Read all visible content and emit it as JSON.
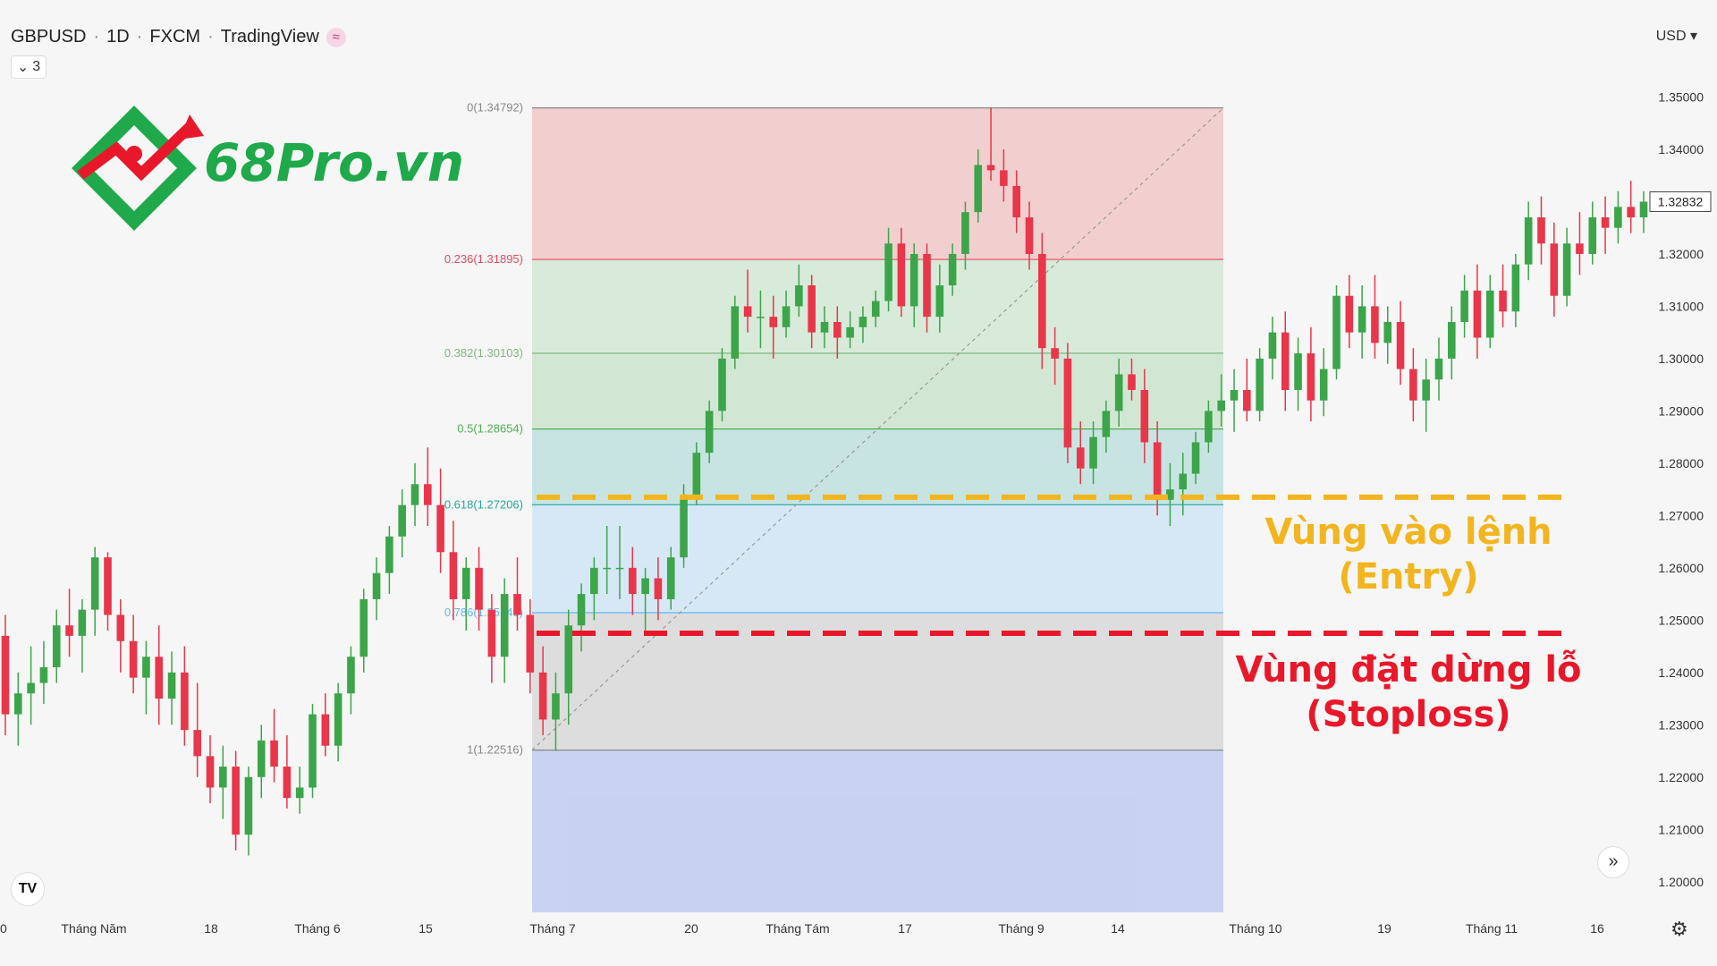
{
  "header": {
    "symbol": "GBPUSD",
    "interval": "1D",
    "broker": "FXCM",
    "source": "TradingView",
    "wave_icon": "wave-icon"
  },
  "collapse": {
    "count": "3"
  },
  "logo": {
    "text": "68Pro.vn"
  },
  "currency": "USD",
  "annotations": {
    "entry_line1": "Vùng vào lệnh",
    "entry_line2": "(Entry)",
    "stop_line1": "Vùng đặt dừng lỗ",
    "stop_line2": "(Stoploss)"
  },
  "chart_data": {
    "type": "candlestick",
    "title": "",
    "ylim": [
      1.195,
      1.36
    ],
    "y_ticks": [
      1.35,
      1.34,
      1.33,
      1.32,
      1.31,
      1.3,
      1.29,
      1.28,
      1.27,
      1.26,
      1.25,
      1.24,
      1.23,
      1.22,
      1.21,
      1.2
    ],
    "x_ticks": [
      "0",
      "Tháng Năm",
      "18",
      "Tháng 6",
      "15",
      "Tháng 7",
      "20",
      "Tháng Tám",
      "17",
      "Tháng 9",
      "14",
      "Tháng 10",
      "19",
      "Tháng 11",
      "16"
    ],
    "current_price": "1.32832",
    "fib_levels": [
      {
        "label": "0(1.34792)",
        "value": 1.34792,
        "color": "#888888"
      },
      {
        "label": "0.236(1.31895)",
        "value": 1.31895,
        "color": "#e34b5c"
      },
      {
        "label": "0.382(1.30103)",
        "value": 1.30103,
        "color": "#7fb77e"
      },
      {
        "label": "0.5(1.28654)",
        "value": 1.28654,
        "color": "#4caf50"
      },
      {
        "label": "0.618(1.27206)",
        "value": 1.27206,
        "color": "#26a69a"
      },
      {
        "label": "0.786(1.25143)",
        "value": 1.25143,
        "color": "#64b5f6"
      },
      {
        "label": "1(1.22516)",
        "value": 1.22516,
        "color": "#888888"
      }
    ],
    "entry_level": 1.2735,
    "stoploss_level": 1.2475,
    "candles": [
      [
        1.247,
        1.251,
        1.228,
        1.232
      ],
      [
        1.232,
        1.24,
        1.226,
        1.236
      ],
      [
        1.236,
        1.245,
        1.23,
        1.238
      ],
      [
        1.238,
        1.246,
        1.234,
        1.241
      ],
      [
        1.241,
        1.252,
        1.238,
        1.249
      ],
      [
        1.249,
        1.256,
        1.243,
        1.247
      ],
      [
        1.247,
        1.254,
        1.24,
        1.252
      ],
      [
        1.252,
        1.264,
        1.247,
        1.262
      ],
      [
        1.262,
        1.263,
        1.248,
        1.251
      ],
      [
        1.251,
        1.254,
        1.24,
        1.246
      ],
      [
        1.246,
        1.251,
        1.236,
        1.239
      ],
      [
        1.239,
        1.246,
        1.232,
        1.243
      ],
      [
        1.243,
        1.249,
        1.23,
        1.235
      ],
      [
        1.235,
        1.244,
        1.23,
        1.24
      ],
      [
        1.24,
        1.245,
        1.226,
        1.229
      ],
      [
        1.229,
        1.238,
        1.22,
        1.224
      ],
      [
        1.224,
        1.228,
        1.215,
        1.218
      ],
      [
        1.218,
        1.226,
        1.212,
        1.222
      ],
      [
        1.222,
        1.225,
        1.206,
        1.209
      ],
      [
        1.209,
        1.222,
        1.205,
        1.22
      ],
      [
        1.22,
        1.23,
        1.216,
        1.227
      ],
      [
        1.227,
        1.233,
        1.219,
        1.222
      ],
      [
        1.222,
        1.228,
        1.214,
        1.216
      ],
      [
        1.216,
        1.222,
        1.213,
        1.218
      ],
      [
        1.218,
        1.234,
        1.216,
        1.232
      ],
      [
        1.232,
        1.236,
        1.224,
        1.226
      ],
      [
        1.226,
        1.238,
        1.223,
        1.236
      ],
      [
        1.236,
        1.245,
        1.232,
        1.243
      ],
      [
        1.243,
        1.256,
        1.24,
        1.254
      ],
      [
        1.254,
        1.262,
        1.25,
        1.259
      ],
      [
        1.259,
        1.268,
        1.255,
        1.266
      ],
      [
        1.266,
        1.275,
        1.262,
        1.272
      ],
      [
        1.272,
        1.28,
        1.268,
        1.276
      ],
      [
        1.276,
        1.283,
        1.268,
        1.272
      ],
      [
        1.272,
        1.279,
        1.259,
        1.263
      ],
      [
        1.263,
        1.269,
        1.25,
        1.254
      ],
      [
        1.254,
        1.262,
        1.248,
        1.26
      ],
      [
        1.26,
        1.264,
        1.248,
        1.252
      ],
      [
        1.252,
        1.255,
        1.238,
        1.243
      ],
      [
        1.243,
        1.258,
        1.238,
        1.255
      ],
      [
        1.255,
        1.262,
        1.248,
        1.251
      ],
      [
        1.251,
        1.254,
        1.236,
        1.24
      ],
      [
        1.24,
        1.245,
        1.228,
        1.231
      ],
      [
        1.231,
        1.24,
        1.225,
        1.236
      ],
      [
        1.236,
        1.252,
        1.23,
        1.249
      ],
      [
        1.249,
        1.257,
        1.244,
        1.255
      ],
      [
        1.255,
        1.262,
        1.25,
        1.26
      ],
      [
        1.26,
        1.268,
        1.255,
        1.26
      ],
      [
        1.26,
        1.268,
        1.254,
        1.26
      ],
      [
        1.26,
        1.264,
        1.251,
        1.255
      ],
      [
        1.255,
        1.26,
        1.248,
        1.258
      ],
      [
        1.258,
        1.262,
        1.25,
        1.254
      ],
      [
        1.254,
        1.264,
        1.252,
        1.262
      ],
      [
        1.262,
        1.276,
        1.26,
        1.274
      ],
      [
        1.274,
        1.284,
        1.272,
        1.282
      ],
      [
        1.282,
        1.292,
        1.28,
        1.29
      ],
      [
        1.29,
        1.302,
        1.288,
        1.3
      ],
      [
        1.3,
        1.312,
        1.298,
        1.31
      ],
      [
        1.31,
        1.317,
        1.305,
        1.308
      ],
      [
        1.308,
        1.313,
        1.302,
        1.308
      ],
      [
        1.308,
        1.312,
        1.3,
        1.306
      ],
      [
        1.306,
        1.313,
        1.304,
        1.31
      ],
      [
        1.31,
        1.318,
        1.308,
        1.314
      ],
      [
        1.314,
        1.316,
        1.302,
        1.305
      ],
      [
        1.305,
        1.31,
        1.302,
        1.307
      ],
      [
        1.307,
        1.31,
        1.3,
        1.304
      ],
      [
        1.304,
        1.309,
        1.302,
        1.306
      ],
      [
        1.306,
        1.31,
        1.303,
        1.308
      ],
      [
        1.308,
        1.313,
        1.306,
        1.311
      ],
      [
        1.311,
        1.325,
        1.309,
        1.322
      ],
      [
        1.322,
        1.325,
        1.308,
        1.31
      ],
      [
        1.31,
        1.322,
        1.306,
        1.32
      ],
      [
        1.32,
        1.322,
        1.305,
        1.308
      ],
      [
        1.308,
        1.318,
        1.305,
        1.314
      ],
      [
        1.314,
        1.322,
        1.312,
        1.32
      ],
      [
        1.32,
        1.33,
        1.317,
        1.328
      ],
      [
        1.328,
        1.34,
        1.326,
        1.337
      ],
      [
        1.337,
        1.348,
        1.334,
        1.336
      ],
      [
        1.336,
        1.34,
        1.33,
        1.333
      ],
      [
        1.333,
        1.336,
        1.324,
        1.327
      ],
      [
        1.327,
        1.33,
        1.317,
        1.32
      ],
      [
        1.32,
        1.324,
        1.298,
        1.302
      ],
      [
        1.302,
        1.306,
        1.295,
        1.3
      ],
      [
        1.3,
        1.303,
        1.28,
        1.283
      ],
      [
        1.283,
        1.288,
        1.276,
        1.279
      ],
      [
        1.279,
        1.288,
        1.276,
        1.285
      ],
      [
        1.285,
        1.292,
        1.282,
        1.29
      ],
      [
        1.29,
        1.3,
        1.287,
        1.297
      ],
      [
        1.297,
        1.3,
        1.292,
        1.294
      ],
      [
        1.294,
        1.298,
        1.28,
        1.284
      ],
      [
        1.284,
        1.288,
        1.27,
        1.273
      ],
      [
        1.273,
        1.28,
        1.268,
        1.275
      ],
      [
        1.275,
        1.282,
        1.27,
        1.278
      ],
      [
        1.278,
        1.286,
        1.276,
        1.284
      ],
      [
        1.284,
        1.292,
        1.282,
        1.29
      ],
      [
        1.29,
        1.297,
        1.287,
        1.292
      ],
      [
        1.292,
        1.298,
        1.286,
        1.294
      ],
      [
        1.294,
        1.3,
        1.288,
        1.29
      ],
      [
        1.29,
        1.302,
        1.288,
        1.3
      ],
      [
        1.3,
        1.308,
        1.296,
        1.305
      ],
      [
        1.305,
        1.309,
        1.29,
        1.294
      ],
      [
        1.294,
        1.304,
        1.29,
        1.301
      ],
      [
        1.301,
        1.306,
        1.288,
        1.292
      ],
      [
        1.292,
        1.302,
        1.289,
        1.298
      ],
      [
        1.298,
        1.314,
        1.296,
        1.312
      ],
      [
        1.312,
        1.316,
        1.302,
        1.305
      ],
      [
        1.305,
        1.314,
        1.3,
        1.31
      ],
      [
        1.31,
        1.316,
        1.3,
        1.303
      ],
      [
        1.303,
        1.31,
        1.299,
        1.307
      ],
      [
        1.307,
        1.311,
        1.295,
        1.298
      ],
      [
        1.298,
        1.302,
        1.288,
        1.292
      ],
      [
        1.292,
        1.3,
        1.286,
        1.296
      ],
      [
        1.296,
        1.304,
        1.292,
        1.3
      ],
      [
        1.3,
        1.31,
        1.296,
        1.307
      ],
      [
        1.307,
        1.316,
        1.304,
        1.313
      ],
      [
        1.313,
        1.318,
        1.3,
        1.304
      ],
      [
        1.304,
        1.316,
        1.302,
        1.313
      ],
      [
        1.313,
        1.318,
        1.306,
        1.309
      ],
      [
        1.309,
        1.32,
        1.306,
        1.318
      ],
      [
        1.318,
        1.33,
        1.315,
        1.327
      ],
      [
        1.327,
        1.331,
        1.318,
        1.322
      ],
      [
        1.322,
        1.326,
        1.308,
        1.312
      ],
      [
        1.312,
        1.325,
        1.31,
        1.322
      ],
      [
        1.322,
        1.328,
        1.316,
        1.32
      ],
      [
        1.32,
        1.33,
        1.318,
        1.327
      ],
      [
        1.327,
        1.331,
        1.32,
        1.325
      ],
      [
        1.325,
        1.332,
        1.322,
        1.329
      ],
      [
        1.329,
        1.334,
        1.324,
        1.327
      ],
      [
        1.327,
        1.332,
        1.324,
        1.33
      ]
    ]
  }
}
